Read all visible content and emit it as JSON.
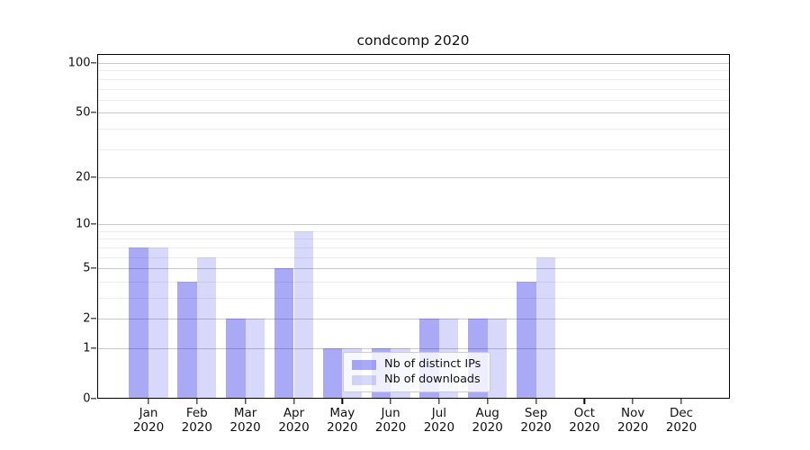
{
  "chart_data": {
    "type": "bar",
    "title": "condcomp 2020",
    "categories": [
      "Jan 2020",
      "Feb 2020",
      "Mar 2020",
      "Apr 2020",
      "May 2020",
      "Jun 2020",
      "Jul 2020",
      "Aug 2020",
      "Sep 2020",
      "Oct 2020",
      "Nov 2020",
      "Dec 2020"
    ],
    "series": [
      {
        "name": "Nb of distinct IPs",
        "color": "rgba(10,10,230,0.35)",
        "values": [
          7,
          4,
          2,
          5,
          1,
          1,
          2,
          2,
          4,
          0,
          0,
          0
        ]
      },
      {
        "name": "Nb of downloads",
        "color": "rgba(10,10,230,0.16)",
        "values": [
          7,
          6,
          2,
          9,
          1,
          1,
          2,
          2,
          6,
          0,
          0,
          0
        ]
      }
    ],
    "xlabel": "",
    "ylabel": "",
    "yscale": "log1p",
    "ylim": [
      0,
      113
    ],
    "yticks": [
      0,
      1,
      2,
      5,
      10,
      20,
      50,
      100
    ],
    "yticks_minor": [
      3,
      4,
      6,
      7,
      8,
      9,
      30,
      40,
      60,
      70,
      80,
      90
    ],
    "grid": "both",
    "legend_position": "lower center inside",
    "colors": {
      "grid_major": "#c9c9c9",
      "grid_minor": "#ededed",
      "spine": "#000000"
    }
  }
}
